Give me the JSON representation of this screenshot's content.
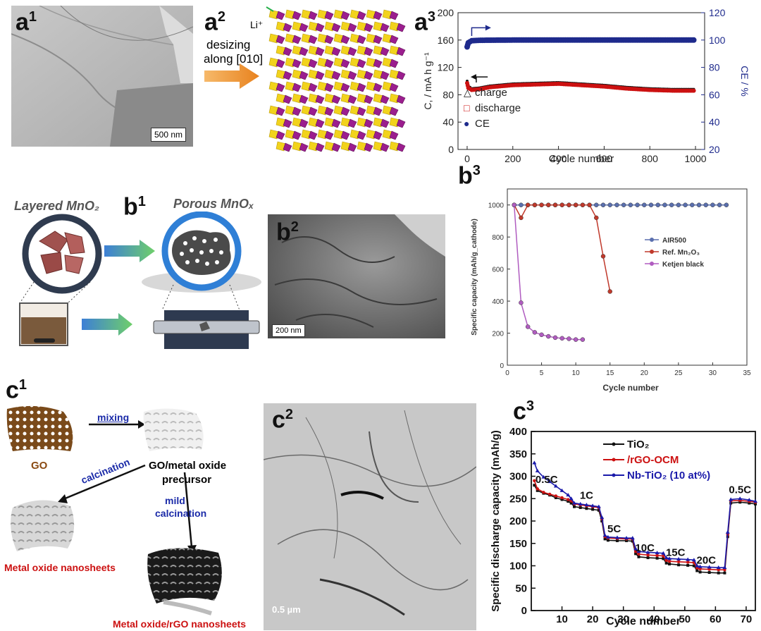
{
  "panels": {
    "a1": {
      "label": "a",
      "sup": "1",
      "scale": "500 nm"
    },
    "a2": {
      "label": "a",
      "sup": "2",
      "ion": "Li⁺",
      "arrow_text": [
        "desizing",
        "along [010]"
      ]
    },
    "a3": {
      "label": "a",
      "sup": "3"
    },
    "b1": {
      "label": "b",
      "sup": "1",
      "left_title": "Layered MnO₂",
      "right_title": "Porous MnOₓ"
    },
    "b2": {
      "label": "b",
      "sup": "2",
      "scale": "200 nm"
    },
    "b3": {
      "label": "b",
      "sup": "3"
    },
    "c1": {
      "label": "c",
      "sup": "1",
      "go": "GO",
      "mixing": "mixing",
      "precursor": [
        "GO/metal oxide",
        "precursor"
      ],
      "calcination": "calcination",
      "mild": [
        "mild",
        "calcination"
      ],
      "out1": "Metal oxide nanosheets",
      "out2": "Metal oxide/rGO nanosheets"
    },
    "c2": {
      "label": "c",
      "sup": "2",
      "scale": "0.5 µm"
    },
    "c3": {
      "label": "c",
      "sup": "3"
    }
  },
  "colors": {
    "black": "#111111",
    "red": "#cc1111",
    "blue": "#1a1aaa",
    "navy": "#1e2a8c",
    "b3_blue": "#5a6fae",
    "b3_red": "#c0392b",
    "b3_pink": "#b05cc0"
  },
  "chart_data": [
    {
      "id": "a3",
      "type": "scatter",
      "xlabel": "Cycle number",
      "ylabel": "C, / mA h g⁻¹",
      "y2label": "CE / %",
      "xlim": [
        -40,
        1040
      ],
      "ylim": [
        0,
        200
      ],
      "y2lim": [
        20,
        120
      ],
      "xticks": [
        0,
        200,
        400,
        600,
        800,
        1000
      ],
      "yticks": [
        0,
        40,
        80,
        120,
        160,
        200
      ],
      "y2ticks": [
        20,
        40,
        60,
        80,
        100,
        120
      ],
      "legend": [
        "charge",
        "discharge",
        "CE"
      ],
      "series": [
        {
          "name": "charge",
          "axis": "left",
          "x": [
            0,
            5,
            20,
            50,
            100,
            200,
            300,
            400,
            500,
            600,
            700,
            800,
            900,
            1000
          ],
          "values": [
            100,
            93,
            89,
            90,
            93,
            96,
            97,
            98,
            96,
            94,
            91,
            89,
            88,
            88
          ]
        },
        {
          "name": "discharge",
          "axis": "left",
          "x": [
            0,
            5,
            20,
            50,
            100,
            200,
            300,
            400,
            500,
            600,
            700,
            800,
            900,
            1000
          ],
          "values": [
            97,
            90,
            87,
            88,
            91,
            94,
            95,
            96,
            94,
            92,
            89,
            87,
            86,
            86
          ]
        },
        {
          "name": "CE",
          "axis": "right",
          "x": [
            0,
            5,
            20,
            50,
            100,
            200,
            300,
            400,
            500,
            600,
            700,
            800,
            900,
            1000
          ],
          "values": [
            95,
            98,
            99.5,
            99.8,
            99.9,
            100,
            100,
            100,
            100,
            100,
            100,
            100,
            100,
            100
          ]
        }
      ]
    },
    {
      "id": "b3",
      "type": "line",
      "xlabel": "Cycle number",
      "ylabel": "Specific capacity (mAh/g_cathode)",
      "xlim": [
        0,
        35
      ],
      "ylim": [
        0,
        1100
      ],
      "xticks": [
        0,
        5,
        10,
        15,
        20,
        25,
        30,
        35
      ],
      "yticks": [
        0,
        200,
        400,
        600,
        800,
        1000
      ],
      "legend_position": "right",
      "series": [
        {
          "name": "AIR500",
          "x": [
            1,
            2,
            3,
            4,
            5,
            6,
            7,
            8,
            9,
            10,
            11,
            12,
            13,
            14,
            15,
            16,
            17,
            18,
            19,
            20,
            21,
            22,
            23,
            24,
            25,
            26,
            27,
            28,
            29,
            30,
            31,
            32
          ],
          "values": [
            1000,
            1000,
            1000,
            1000,
            1000,
            1000,
            1000,
            1000,
            1000,
            1000,
            1000,
            1000,
            1000,
            1000,
            1000,
            1000,
            1000,
            1000,
            1000,
            1000,
            1000,
            1000,
            1000,
            1000,
            1000,
            1000,
            1000,
            1000,
            1000,
            1000,
            1000,
            1000
          ]
        },
        {
          "name": "Ref. Mn₂O₃",
          "x": [
            1,
            2,
            3,
            4,
            5,
            6,
            7,
            8,
            9,
            10,
            11,
            12,
            13,
            14,
            15
          ],
          "values": [
            1000,
            920,
            1000,
            1000,
            1000,
            1000,
            1000,
            1000,
            1000,
            1000,
            1000,
            1000,
            920,
            680,
            460
          ]
        },
        {
          "name": "Ketjen black",
          "x": [
            1,
            2,
            3,
            4,
            5,
            6,
            7,
            8,
            9,
            10,
            11
          ],
          "values": [
            1000,
            390,
            240,
            205,
            190,
            180,
            172,
            168,
            165,
            160,
            160
          ]
        }
      ]
    },
    {
      "id": "c3",
      "type": "line",
      "xlabel": "Cycle number",
      "ylabel": "Specific discharge capacity (mAh/g)",
      "xlim": [
        0,
        73
      ],
      "ylim": [
        0,
        400
      ],
      "xticks": [
        10,
        20,
        30,
        40,
        50,
        60,
        70
      ],
      "yticks": [
        0,
        50,
        100,
        150,
        200,
        250,
        300,
        350,
        400
      ],
      "rate_labels": [
        {
          "text": "0.5C",
          "x": 5,
          "y": 285
        },
        {
          "text": "1C",
          "x": 18,
          "y": 250
        },
        {
          "text": "5C",
          "x": 27,
          "y": 175
        },
        {
          "text": "10C",
          "x": 37,
          "y": 132
        },
        {
          "text": "15C",
          "x": 47,
          "y": 122
        },
        {
          "text": "20C",
          "x": 57,
          "y": 105
        },
        {
          "text": "0.5C",
          "x": 68,
          "y": 262
        }
      ],
      "series": [
        {
          "name": "TiO₂",
          "x": [
            1,
            2,
            4,
            6,
            8,
            10,
            12,
            13,
            14,
            16,
            18,
            20,
            22,
            23,
            24,
            25,
            28,
            31,
            33,
            34,
            35,
            38,
            41,
            43,
            44,
            45,
            48,
            51,
            53,
            54,
            55,
            58,
            61,
            63,
            64,
            65,
            68,
            71,
            73
          ],
          "values": [
            280,
            268,
            262,
            258,
            252,
            248,
            244,
            240,
            232,
            230,
            228,
            226,
            224,
            200,
            160,
            157,
            156,
            156,
            155,
            127,
            120,
            118,
            117,
            116,
            106,
            104,
            102,
            101,
            100,
            89,
            86,
            85,
            84,
            84,
            165,
            240,
            242,
            240,
            238
          ]
        },
        {
          "name": "/rGO-OCM",
          "x": [
            1,
            2,
            4,
            6,
            8,
            10,
            12,
            13,
            14,
            16,
            18,
            20,
            22,
            23,
            24,
            25,
            28,
            31,
            33,
            34,
            35,
            38,
            41,
            43,
            44,
            45,
            48,
            51,
            53,
            54,
            55,
            58,
            61,
            63,
            64,
            65,
            68,
            71,
            73
          ],
          "values": [
            290,
            272,
            264,
            260,
            256,
            252,
            248,
            245,
            238,
            236,
            234,
            232,
            230,
            205,
            165,
            162,
            161,
            160,
            160,
            132,
            126,
            124,
            123,
            122,
            112,
            110,
            109,
            108,
            107,
            95,
            93,
            92,
            91,
            91,
            170,
            245,
            246,
            244,
            242
          ]
        },
        {
          "name": "Nb-TiO₂ (10 at%)",
          "x": [
            1,
            2,
            4,
            6,
            8,
            10,
            12,
            13,
            14,
            16,
            18,
            20,
            22,
            23,
            24,
            25,
            28,
            31,
            33,
            34,
            35,
            38,
            41,
            43,
            44,
            45,
            48,
            51,
            53,
            54,
            55,
            58,
            61,
            63,
            64,
            65,
            68,
            71,
            73
          ],
          "values": [
            330,
            312,
            298,
            288,
            278,
            268,
            258,
            250,
            240,
            238,
            236,
            234,
            232,
            208,
            168,
            164,
            163,
            162,
            162,
            138,
            132,
            130,
            129,
            128,
            118,
            116,
            115,
            114,
            113,
            100,
            98,
            97,
            96,
            96,
            175,
            248,
            250,
            247,
            244
          ]
        }
      ]
    }
  ]
}
